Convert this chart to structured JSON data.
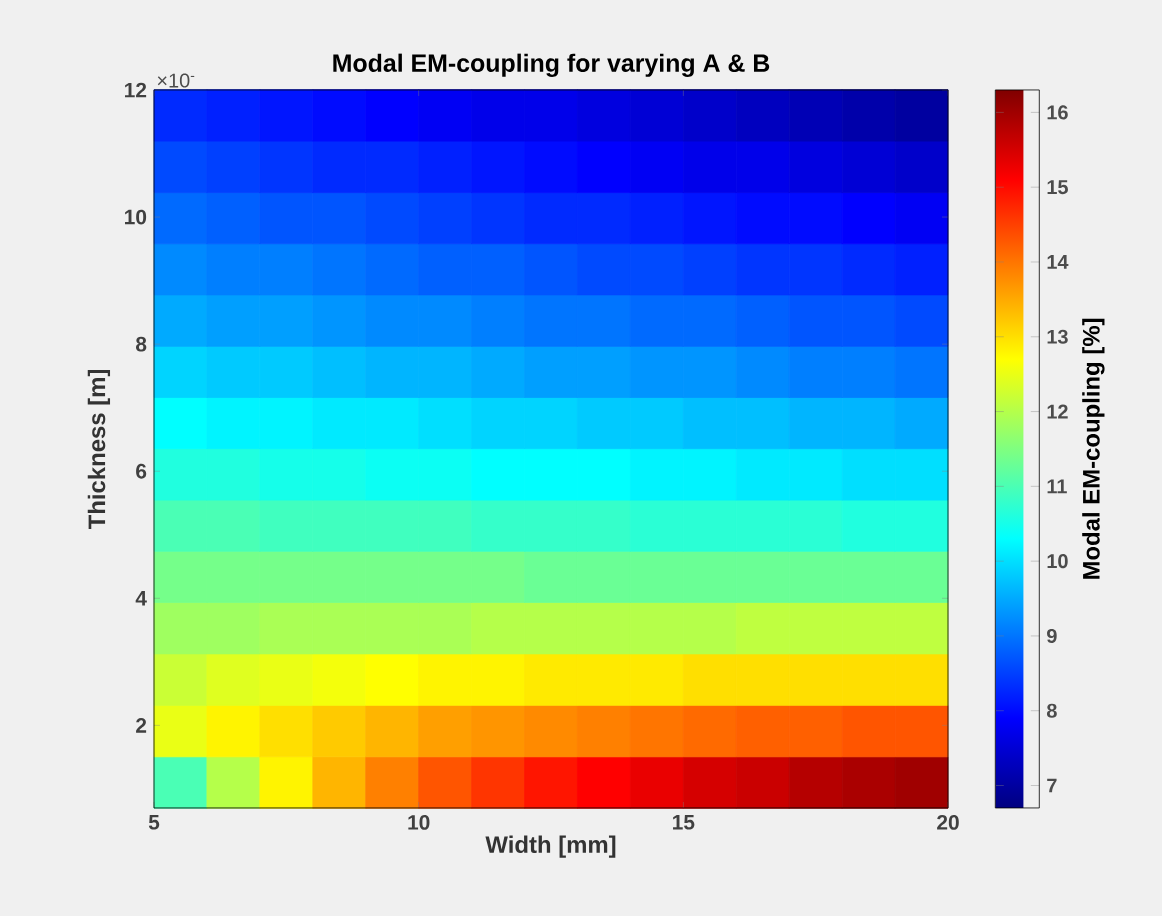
{
  "chart_data": {
    "type": "heatmap",
    "title": "Modal EM-coupling for varying A & B",
    "xlabel": "Width [mm]",
    "ylabel": "Thickness [m]",
    "clabel": "Modal EM-coupling [%]",
    "annotations": [
      "×10$^{-}$"
    ],
    "x": [
      5.5,
      6.5,
      7.5,
      8.5,
      9.5,
      10.5,
      11.5,
      12.5,
      13.5,
      14.5,
      15.5,
      16.5,
      17.5,
      18.5,
      19.5
    ],
    "y": [
      11.6,
      10.79,
      9.98,
      9.18,
      8.37,
      7.56,
      6.76,
      5.95,
      5.14,
      4.34,
      3.53,
      2.72,
      1.91,
      1.1
    ],
    "xlim": [
      5,
      20
    ],
    "ylim": [
      0.7,
      12
    ],
    "xticks": [
      5,
      10,
      15,
      20
    ],
    "yticks": [
      2,
      4,
      6,
      8,
      10,
      12
    ],
    "clim": [
      6.7,
      16.3
    ],
    "cticks": [
      7,
      8,
      9,
      10,
      11,
      12,
      13,
      14,
      15,
      16
    ],
    "cells": [
      [
        8.3,
        8.2,
        8.1,
        8.0,
        7.9,
        7.8,
        7.7,
        7.7,
        7.6,
        7.5,
        7.4,
        7.3,
        7.2,
        7.1,
        7.0
      ],
      [
        8.6,
        8.5,
        8.4,
        8.3,
        8.3,
        8.2,
        8.1,
        8.0,
        7.9,
        7.8,
        7.7,
        7.7,
        7.6,
        7.5,
        7.4
      ],
      [
        8.9,
        8.8,
        8.7,
        8.7,
        8.6,
        8.5,
        8.4,
        8.3,
        8.3,
        8.2,
        8.1,
        8.0,
        8.0,
        7.9,
        7.8
      ],
      [
        9.2,
        9.1,
        9.1,
        9.0,
        8.9,
        8.8,
        8.8,
        8.7,
        8.6,
        8.6,
        8.5,
        8.4,
        8.4,
        8.3,
        8.2
      ],
      [
        9.5,
        9.4,
        9.4,
        9.3,
        9.2,
        9.2,
        9.1,
        9.0,
        9.0,
        8.9,
        8.9,
        8.8,
        8.7,
        8.7,
        8.6
      ],
      [
        9.9,
        9.8,
        9.8,
        9.7,
        9.6,
        9.6,
        9.5,
        9.4,
        9.4,
        9.3,
        9.3,
        9.2,
        9.1,
        9.1,
        9.0
      ],
      [
        10.3,
        10.2,
        10.2,
        10.1,
        10.1,
        10.0,
        9.9,
        9.9,
        9.8,
        9.8,
        9.7,
        9.7,
        9.6,
        9.6,
        9.5
      ],
      [
        10.6,
        10.6,
        10.5,
        10.5,
        10.4,
        10.4,
        10.3,
        10.3,
        10.3,
        10.2,
        10.2,
        10.1,
        10.1,
        10.0,
        10.0
      ],
      [
        11.0,
        11.0,
        10.9,
        10.9,
        10.9,
        10.9,
        10.8,
        10.8,
        10.8,
        10.7,
        10.7,
        10.7,
        10.7,
        10.6,
        10.6
      ],
      [
        11.4,
        11.4,
        11.4,
        11.4,
        11.4,
        11.4,
        11.4,
        11.3,
        11.3,
        11.3,
        11.3,
        11.3,
        11.3,
        11.3,
        11.3
      ],
      [
        11.8,
        11.8,
        11.9,
        11.9,
        11.9,
        11.9,
        12.0,
        12.0,
        12.0,
        12.0,
        12.0,
        12.1,
        12.1,
        12.1,
        12.1
      ],
      [
        12.2,
        12.4,
        12.5,
        12.6,
        12.7,
        12.8,
        12.8,
        12.9,
        12.9,
        12.9,
        13.0,
        13.0,
        13.0,
        13.0,
        13.0
      ],
      [
        12.5,
        12.8,
        13.0,
        13.2,
        13.4,
        13.6,
        13.7,
        13.8,
        13.9,
        14.0,
        14.1,
        14.2,
        14.2,
        14.3,
        14.3
      ],
      [
        11.0,
        12.0,
        12.8,
        13.4,
        13.9,
        14.3,
        14.6,
        14.9,
        15.1,
        15.3,
        15.5,
        15.6,
        15.8,
        15.9,
        16.0
      ]
    ]
  }
}
